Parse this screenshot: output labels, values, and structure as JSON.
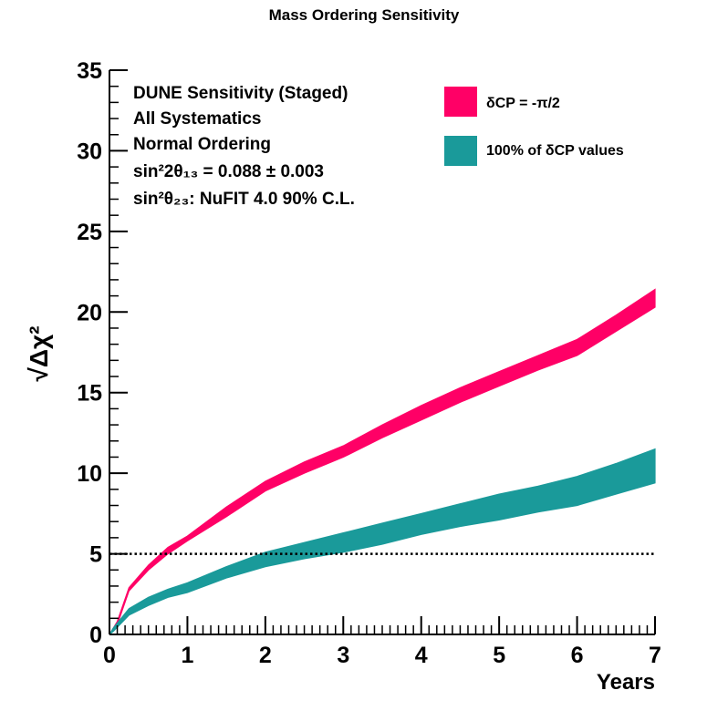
{
  "chart_data": {
    "type": "area",
    "title": "Mass Ordering Sensitivity",
    "xlabel": "Years",
    "ylabel": "√Δχ²",
    "xlim": [
      0,
      7
    ],
    "ylim": [
      0,
      35
    ],
    "x_ticks": [
      0,
      1,
      2,
      3,
      4,
      5,
      6,
      7
    ],
    "y_ticks": [
      0,
      5,
      10,
      15,
      20,
      25,
      30,
      35
    ],
    "grid": false,
    "legend_position": "top-right",
    "annotation_lines": [
      "DUNE Sensitivity (Staged)",
      "All Systematics",
      "Normal Ordering",
      "sin²2θ₁₃ = 0.088 ± 0.003",
      "sin²θ₂₃: NuFIT 4.0 90% C.L."
    ],
    "threshold_line": {
      "y": 5,
      "style": "dotted"
    },
    "series": [
      {
        "name": "δCP = -π/2",
        "color": "#ff0066",
        "x": [
          0.1,
          0.25,
          0.5,
          0.75,
          1.0,
          1.5,
          2.0,
          2.5,
          3.0,
          3.5,
          4.0,
          4.5,
          5.0,
          5.5,
          6.0,
          6.5,
          7.0
        ],
        "upper": [
          0.8,
          2.9,
          4.3,
          5.4,
          6.1,
          7.9,
          9.5,
          10.7,
          11.7,
          13.0,
          14.2,
          15.3,
          16.3,
          17.3,
          18.3,
          19.8,
          21.4
        ],
        "lower": [
          0.6,
          2.7,
          4.0,
          5.0,
          5.8,
          7.3,
          8.9,
          10.0,
          11.0,
          12.2,
          13.3,
          14.4,
          15.4,
          16.4,
          17.3,
          18.8,
          20.3
        ]
      },
      {
        "name": "100% of δCP values",
        "color": "#1a9a9a",
        "x": [
          0.05,
          0.25,
          0.5,
          0.75,
          1.0,
          1.5,
          2.0,
          2.5,
          3.0,
          3.5,
          4.0,
          4.5,
          5.0,
          5.5,
          6.0,
          6.5,
          7.0
        ],
        "upper": [
          0.4,
          1.6,
          2.3,
          2.8,
          3.2,
          4.2,
          5.1,
          5.7,
          6.3,
          6.9,
          7.5,
          8.1,
          8.7,
          9.2,
          9.8,
          10.6,
          11.5
        ],
        "lower": [
          0.2,
          1.2,
          1.8,
          2.3,
          2.6,
          3.5,
          4.2,
          4.7,
          5.1,
          5.6,
          6.2,
          6.7,
          7.1,
          7.6,
          8.0,
          8.7,
          9.4
        ]
      }
    ]
  }
}
